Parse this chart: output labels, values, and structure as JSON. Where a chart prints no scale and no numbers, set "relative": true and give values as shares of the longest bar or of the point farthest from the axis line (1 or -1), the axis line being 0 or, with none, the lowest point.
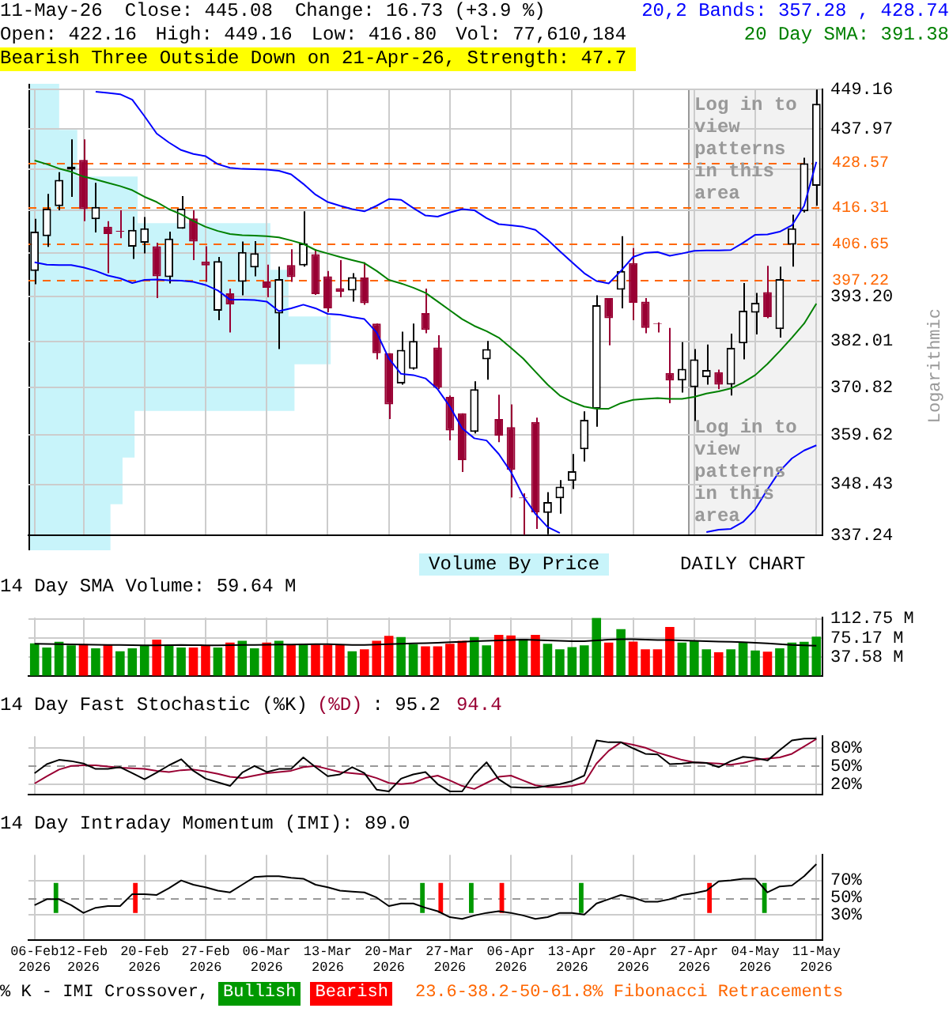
{
  "chart_data": [
    {
      "type": "candlestick",
      "annotations": [
        "11-May-26",
        "Close: 445.08",
        "Change: 16.73 (+3.9 %)",
        "20,2 Bands: 357.28 , 428.74",
        "Open: 422.16",
        "High: 449.16",
        "Low: 416.80",
        "Vol: 77,610,184",
        "20 Day SMA: 391.38",
        "Bearish Three Outside Down on 21-Apr-26, Strength: 47.7",
        "Log in to view patterns in this area",
        "Log in to view patterns in this area",
        "Volume By Price",
        "DAILY CHART"
      ],
      "categories": [
        "06-Feb 2026",
        null,
        null,
        null,
        "12-Feb 2026",
        null,
        null,
        null,
        null,
        "20-Feb 2026",
        null,
        null,
        null,
        null,
        "27-Feb 2026",
        null,
        null,
        null,
        null,
        "06-Mar 2026",
        null,
        null,
        null,
        null,
        "13-Mar 2026",
        null,
        null,
        null,
        null,
        "20-Mar 2026",
        null,
        null,
        null,
        null,
        "27-Mar 2026",
        null,
        null,
        null,
        null,
        "06-Apr 2026",
        null,
        null,
        null,
        null,
        "13-Apr 2026",
        null,
        null,
        null,
        null,
        "20-Apr 2026",
        null,
        null,
        null,
        null,
        "27-Apr 2026",
        null,
        null,
        null,
        null,
        "04-May 2026",
        null,
        null,
        null,
        null,
        "11-May 2026"
      ],
      "ohlc": [
        [
          399.7,
          413.3,
          396.3,
          409.9
        ],
        [
          408.7,
          420.0,
          405.9,
          416.0
        ],
        [
          416.7,
          425.9,
          415.6,
          423.8
        ],
        [
          426.6,
          435.0,
          419.2,
          427.4
        ],
        [
          429.3,
          435.0,
          412.7,
          415.9
        ],
        [
          413.2,
          423.0,
          409.7,
          416.5
        ],
        [
          411.2,
          412.7,
          399.1,
          409.3
        ],
        [
          410.1,
          415.6,
          408.2,
          409.9
        ],
        [
          406.0,
          413.9,
          402.8,
          410.4
        ],
        [
          407.0,
          413.8,
          404.2,
          410.8
        ],
        [
          406.1,
          407.0,
          392.8,
          398.3
        ],
        [
          398.1,
          409.9,
          396.5,
          408.1
        ],
        [
          410.7,
          419.4,
          410.7,
          416.0
        ],
        [
          413.4,
          415.6,
          402.5,
          407.3
        ],
        [
          402.1,
          406.1,
          396.9,
          401.1
        ],
        [
          389.6,
          403.3,
          387.2,
          402.2
        ],
        [
          394.0,
          395.2,
          384.2,
          391.2
        ],
        [
          396.9,
          407.3,
          393.5,
          404.6
        ],
        [
          400.6,
          407.4,
          398.3,
          404.3
        ],
        [
          397.0,
          401.3,
          393.0,
          395.4
        ],
        [
          388.9,
          400.8,
          380.1,
          397.6
        ],
        [
          401.2,
          405.3,
          396.9,
          398.1
        ],
        [
          401.1,
          415.3,
          400.8,
          406.8
        ],
        [
          404.0,
          405.3,
          393.6,
          393.8
        ],
        [
          398.3,
          399.7,
          389.2,
          390.2
        ],
        [
          395.3,
          402.5,
          393.0,
          394.4
        ],
        [
          394.7,
          399.1,
          391.9,
          398.1
        ],
        [
          398.0,
          401.9,
          391.1,
          391.5
        ],
        [
          386.4,
          386.4,
          377.6,
          379.1
        ],
        [
          379.1,
          379.1,
          363.4,
          366.8
        ],
        [
          371.8,
          384.4,
          371.5,
          379.9
        ],
        [
          375.3,
          386.4,
          375.1,
          382.1
        ],
        [
          389.0,
          395.2,
          384.0,
          384.8
        ],
        [
          380.5,
          383.5,
          370.4,
          370.8
        ],
        [
          368.6,
          368.9,
          358.4,
          360.7
        ],
        [
          364.7,
          364.7,
          351.2,
          353.9
        ],
        [
          360.4,
          372.3,
          360.0,
          370.4
        ],
        [
          377.6,
          382.1,
          372.7,
          380.1
        ],
        [
          363.4,
          369.1,
          358.0,
          359.5
        ],
        [
          361.5,
          366.8,
          345.5,
          351.7
        ],
        [
          345.5,
          346.4,
          337.3,
          345.3
        ],
        [
          362.7,
          363.7,
          338.6,
          342.2
        ],
        [
          342.1,
          346.7,
          337.4,
          344.5
        ],
        [
          345.3,
          349.4,
          341.9,
          347.9
        ],
        [
          349.2,
          355.3,
          347.4,
          351.4
        ],
        [
          356.4,
          365.2,
          353.6,
          363.2
        ],
        [
          365.8,
          393.5,
          361.6,
          391.0
        ],
        [
          392.8,
          392.8,
          381.0,
          387.7
        ],
        [
          394.9,
          408.7,
          390.2,
          399.7
        ],
        [
          401.7,
          405.6,
          387.2,
          391.6
        ],
        [
          391.9,
          392.8,
          384.0,
          385.3
        ],
        [
          386.5,
          386.7,
          384.2,
          386.3
        ],
        [
          374.3,
          385.3,
          367.1,
          372.5
        ],
        [
          372.5,
          381.8,
          369.6,
          375.3
        ],
        [
          370.9,
          380.1,
          362.9,
          377.6
        ],
        [
          373.3,
          381.2,
          371.5,
          375.0
        ],
        [
          374.5,
          375.1,
          370.4,
          371.5
        ],
        [
          371.5,
          383.9,
          368.9,
          380.4
        ],
        [
          381.5,
          396.6,
          377.6,
          389.6
        ],
        [
          389.1,
          394.1,
          383.7,
          391.6
        ],
        [
          394.3,
          401.0,
          387.7,
          388.0
        ],
        [
          385.0,
          400.8,
          382.9,
          397.6
        ],
        [
          406.5,
          414.4,
          400.8,
          410.8
        ],
        [
          415.3,
          429.9,
          415.0,
          428.35
        ],
        [
          422.16,
          449.16,
          416.8,
          445.08
        ]
      ],
      "series": [
        {
          "type": "line",
          "color": "#0000ff",
          "values": [
            null,
            null,
            null,
            null,
            null,
            448.5,
            448.2,
            447.8,
            446.2,
            441.5,
            436.6,
            434.1,
            432.0,
            430.9,
            430.3,
            428.1,
            427.1,
            426.8,
            426.7,
            426.6,
            426.3,
            425.3,
            422.7,
            419.8,
            417.8,
            416.8,
            415.9,
            415.3,
            416.8,
            418.6,
            418.4,
            416.2,
            414.2,
            413.9,
            415.0,
            415.9,
            415.6,
            413.5,
            411.9,
            411.6,
            411.2,
            410.4,
            407.8,
            404.8,
            401.9,
            399.1,
            397.1,
            396.5,
            399.7,
            403.3,
            404.4,
            404.6,
            403.6,
            404.2,
            404.9,
            405.0,
            405.0,
            405.1,
            407.0,
            409.1,
            409.2,
            409.9,
            411.6,
            416.8,
            428.74
          ]
        },
        {
          "type": "line",
          "color": "#0000ff",
          "values": [
            401.9,
            401.3,
            401.2,
            401.2,
            400.6,
            399.7,
            398.5,
            397.8,
            396.6,
            397.4,
            397.5,
            397.3,
            397.2,
            396.9,
            396.1,
            394.7,
            392.4,
            392.4,
            392.3,
            391.9,
            389.5,
            390.2,
            391.1,
            390.2,
            388.8,
            388.6,
            388.0,
            387.5,
            384.2,
            377.8,
            374.1,
            373.8,
            373.0,
            370.4,
            366.3,
            361.2,
            358.9,
            358.4,
            355.3,
            351.2,
            345.8,
            341.9,
            339.0,
            337.7,
            null,
            null,
            null,
            null,
            null,
            null,
            null,
            null,
            null,
            null,
            null,
            337.9,
            338.4,
            338.6,
            340.1,
            342.9,
            347.3,
            351.4,
            354.3,
            356.1,
            357.28
          ]
        },
        {
          "type": "line",
          "color": "#008000",
          "values": [
            429.1,
            428.1,
            426.9,
            426.0,
            424.7,
            423.9,
            423.0,
            422.1,
            421.0,
            419.2,
            417.8,
            415.9,
            414.5,
            412.7,
            411.2,
            410.1,
            409.3,
            409.0,
            408.9,
            408.7,
            408.4,
            407.6,
            406.7,
            405.1,
            404.2,
            403.3,
            402.5,
            401.7,
            399.7,
            397.4,
            396.5,
            395.4,
            394.1,
            391.9,
            389.7,
            387.5,
            385.8,
            384.5,
            382.9,
            380.4,
            377.8,
            374.6,
            371.5,
            368.9,
            367.4,
            366.3,
            365.8,
            365.8,
            367.1,
            367.9,
            368.1,
            368.3,
            368.1,
            368.1,
            368.6,
            369.4,
            369.9,
            370.6,
            372.0,
            373.8,
            376.5,
            379.6,
            382.9,
            386.4,
            391.38
          ]
        }
      ],
      "ylim": [
        337.24,
        449.16
      ],
      "yticks": [
        337.24,
        348.43,
        359.62,
        370.82,
        382.01,
        {
          "value": 393.2,
          "label": "393.20"
        },
        {
          "value": 404.39,
          "label": null
        },
        {
          "value": 415.58,
          "label": null
        },
        {
          "value": 426.77,
          "label": null
        },
        437.97,
        449.16
      ],
      "log": true,
      "grid": true,
      "marker": "none",
      "tick_labels": "y",
      "ref_lines": [
        {
          "axis": "y",
          "value": 428.57,
          "label": "428.57",
          "color": "#ff6600",
          "line_style": "dashed"
        },
        {
          "axis": "y",
          "value": 416.31,
          "label": "416.31",
          "color": "#ff6600",
          "line_style": "dashed"
        },
        {
          "axis": "y",
          "value": 406.65,
          "label": "406.65",
          "color": "#ff6600",
          "line_style": "dashed"
        },
        {
          "axis": "y",
          "value": 397.22,
          "label": "397.22",
          "color": "#ff6600",
          "line_style": "dashed"
        }
      ],
      "bands": [
        {
          "axis": "x",
          "from": "27-Apr 2026",
          "to": "11-May 2026",
          "color": "#f2f2f2"
        }
      ],
      "ylabel": "Logarithmic"
    },
    {
      "type": "bar",
      "orientation": "horizontal",
      "relative": true,
      "categories": [
        null,
        null,
        null,
        null,
        null,
        null,
        null,
        null,
        null,
        null
      ],
      "values": [
        0.1,
        0.16,
        0.36,
        0.8,
        0.86,
        1,
        0.88,
        0.35,
        0.31,
        0.27
      ],
      "color": "#c8f4fa"
    },
    {
      "type": "bar",
      "title": "14 Day SMA Volume: 59.64 M",
      "categories": [
        "06-Feb 2026",
        null,
        null,
        null,
        "12-Feb 2026",
        null,
        null,
        null,
        null,
        "20-Feb 2026",
        null,
        null,
        null,
        null,
        "27-Feb 2026",
        null,
        null,
        null,
        null,
        "06-Mar 2026",
        null,
        null,
        null,
        null,
        "13-Mar 2026",
        null,
        null,
        null,
        null,
        "20-Mar 2026",
        null,
        null,
        null,
        null,
        "27-Mar 2026",
        null,
        null,
        null,
        null,
        "06-Apr 2026",
        null,
        null,
        null,
        null,
        "13-Apr 2026",
        null,
        null,
        null,
        null,
        "20-Apr 2026",
        null,
        null,
        null,
        null,
        "27-Apr 2026",
        null,
        null,
        null,
        null,
        "04-May 2026",
        null,
        null,
        null,
        null,
        "11-May 2026"
      ],
      "series": [
        {
          "colors": [
            "#009900",
            "#009900",
            "#009900",
            "#009900",
            "#ff0000",
            "#009900",
            "#ff0000",
            "#009900",
            "#009900",
            "#009900",
            "#ff0000",
            "#009900",
            "#009900",
            "#ff0000",
            "#ff0000",
            "#009900",
            "#ff0000",
            "#009900",
            "#009900",
            "#ff0000",
            "#009900",
            "#ff0000",
            "#009900",
            "#ff0000",
            "#ff0000",
            "#ff0000",
            "#009900",
            "#ff0000",
            "#ff0000",
            "#ff0000",
            "#009900",
            "#009900",
            "#ff0000",
            "#ff0000",
            "#ff0000",
            "#ff0000",
            "#009900",
            "#009900",
            "#ff0000",
            "#ff0000",
            "#009900",
            "#ff0000",
            "#009900",
            "#009900",
            "#009900",
            "#009900",
            "#009900",
            "#ff0000",
            "#009900",
            "#ff0000",
            "#ff0000",
            "#ff0000",
            "#ff0000",
            "#009900",
            "#009900",
            "#009900",
            "#ff0000",
            "#009900",
            "#009900",
            "#009900",
            "#ff0000",
            "#009900",
            "#009900",
            "#009900",
            "#009900"
          ],
          "values": [
            64.1,
            56.0,
            67.1,
            60.4,
            62.6,
            54.5,
            61.9,
            48.6,
            54.5,
            61.2,
            71.5,
            61.2,
            56.0,
            56.0,
            59.0,
            56.0,
            65.6,
            69.3,
            54.5,
            65.6,
            69.3,
            61.2,
            63.4,
            63.4,
            61.2,
            61.2,
            48.6,
            52.3,
            69.3,
            78.9,
            76.6,
            62.6,
            58.2,
            58.2,
            63.4,
            69.3,
            76.6,
            60.4,
            81.1,
            79.6,
            73.0,
            81.1,
            63.4,
            52.3,
            56.7,
            60.4,
            114.5,
            65.6,
            92.1,
            67.8,
            52.3,
            52.3,
            96.5,
            65.6,
            70.0,
            52.3,
            46.4,
            52.3,
            65.6,
            50.1,
            47.9,
            54.5,
            65.6,
            67.1,
            77.61
          ]
        },
        {
          "type": "line",
          "color": "#000000",
          "values": [
            63.4,
            63.0,
            62.6,
            62.2,
            61.9,
            61.5,
            61.2,
            61.2,
            60.8,
            60.4,
            60.4,
            60.8,
            61.2,
            60.8,
            60.4,
            60.4,
            60.8,
            61.2,
            61.2,
            61.5,
            61.9,
            61.9,
            62.2,
            62.6,
            62.6,
            61.9,
            61.2,
            61.2,
            61.9,
            62.6,
            63.4,
            64.1,
            64.5,
            65.2,
            66.3,
            67.1,
            68.5,
            69.3,
            70.0,
            70.7,
            71.5,
            70.7,
            70.0,
            69.3,
            68.5,
            68.5,
            70.0,
            71.5,
            72.2,
            72.2,
            71.5,
            70.7,
            70.7,
            70.0,
            69.3,
            68.5,
            67.8,
            67.1,
            66.3,
            65.2,
            64.1,
            62.6,
            61.2,
            60.4,
            59.64
          ]
        }
      ],
      "ylim": [
        0,
        115
      ],
      "yticks": [
        {
          "value": 37.58,
          "label": "37.58 M"
        },
        {
          "value": 75.17,
          "label": "75.17 M"
        },
        {
          "value": 112.75,
          "label": "112.75 M"
        }
      ],
      "grid": true,
      "marker": "none",
      "tick_labels": "y"
    },
    {
      "type": "line",
      "title": "14 Day Fast Stochastic",
      "categories": [
        "06-Feb 2026",
        null,
        null,
        null,
        "12-Feb 2026",
        null,
        null,
        null,
        null,
        "20-Feb 2026",
        null,
        null,
        null,
        null,
        "27-Feb 2026",
        null,
        null,
        null,
        null,
        "06-Mar 2026",
        null,
        null,
        null,
        null,
        "13-Mar 2026",
        null,
        null,
        null,
        null,
        "20-Mar 2026",
        null,
        null,
        null,
        null,
        "27-Mar 2026",
        null,
        null,
        null,
        null,
        "06-Apr 2026",
        null,
        null,
        null,
        null,
        "13-Apr 2026",
        null,
        null,
        null,
        null,
        "20-Apr 2026",
        null,
        null,
        null,
        null,
        "27-Apr 2026",
        null,
        null,
        null,
        null,
        "04-May 2026",
        null,
        null,
        null,
        null,
        "11-May 2026"
      ],
      "series": [
        {
          "name": "(%K)",
          "color": "#000000",
          "values": [
            38,
            53,
            60,
            58,
            54,
            45,
            45,
            48,
            38,
            28,
            39,
            51,
            61,
            42,
            29,
            23,
            17,
            39,
            50,
            40,
            45,
            45,
            64,
            48,
            33,
            36,
            48,
            38,
            11,
            8,
            29,
            36,
            40,
            20,
            8,
            8,
            36,
            56,
            28,
            15,
            14,
            14,
            17,
            20,
            25,
            34,
            92,
            89,
            89,
            79,
            70,
            69,
            53,
            54,
            56,
            55,
            48,
            58,
            65,
            63,
            59,
            76,
            92,
            95,
            95.2
          ]
        },
        {
          "name": "(%D)",
          "color": "#990033",
          "values": [
            21,
            33,
            44,
            50,
            51,
            51,
            49,
            47,
            46,
            45,
            42,
            40,
            43,
            44,
            41,
            37,
            32,
            30,
            34,
            38,
            40,
            42,
            48,
            50,
            45,
            40,
            38,
            36,
            30,
            22,
            20,
            22,
            30,
            34,
            26,
            17,
            12,
            22,
            32,
            34,
            26,
            18,
            15,
            15,
            17,
            22,
            54,
            75,
            89,
            85,
            80,
            72,
            66,
            60,
            56,
            55,
            54,
            52,
            55,
            60,
            62,
            64,
            70,
            82,
            94.4
          ]
        }
      ],
      "ylim": [
        3,
        99
      ],
      "yticks": [
        {
          "value": 20,
          "label": "20%"
        },
        {
          "value": 50,
          "label": "50%"
        },
        {
          "value": 80,
          "label": "80%"
        }
      ],
      "ref_lines": [
        {
          "axis": "y",
          "value": 50,
          "color": "#999999",
          "line_style": "dashed"
        }
      ],
      "annotations": [
        ":",
        "95.2",
        "94.4"
      ],
      "grid": true,
      "marker": "none",
      "legend": "top left",
      "tick_labels": "y"
    },
    {
      "type": "line",
      "title": "14 Day Intraday Momentum (IMI): 89.0",
      "categories": [
        "06-Feb 2026",
        null,
        null,
        null,
        "12-Feb 2026",
        null,
        null,
        null,
        null,
        "20-Feb 2026",
        null,
        null,
        null,
        null,
        "27-Feb 2026",
        null,
        null,
        null,
        null,
        "06-Mar 2026",
        null,
        null,
        null,
        null,
        "13-Mar 2026",
        null,
        null,
        null,
        null,
        "20-Mar 2026",
        null,
        null,
        null,
        null,
        "27-Mar 2026",
        null,
        null,
        null,
        null,
        "06-Apr 2026",
        null,
        null,
        null,
        null,
        "13-Apr 2026",
        null,
        null,
        null,
        null,
        "20-Apr 2026",
        null,
        null,
        null,
        null,
        "27-Apr 2026",
        null,
        null,
        null,
        null,
        "04-May 2026",
        null,
        null,
        null,
        null,
        "11-May 2026"
      ],
      "series": [
        {
          "color": "#000000",
          "values": [
            41,
            48,
            48,
            41,
            32,
            38,
            40,
            40,
            54,
            54,
            53,
            61,
            70,
            65,
            62,
            58,
            56,
            65,
            74,
            75,
            75,
            73,
            72,
            65,
            62,
            58,
            57,
            56,
            50,
            40,
            43,
            43,
            38,
            34,
            27,
            25,
            29,
            32,
            34,
            32,
            29,
            25,
            27,
            32,
            32,
            30,
            43,
            48,
            53,
            50,
            45,
            45,
            48,
            53,
            55,
            58,
            69,
            70,
            72,
            72,
            56,
            63,
            64,
            75,
            89
          ]
        },
        {
          "name": "Bullish",
          "type": "bar",
          "color": "#009900",
          "base": [
            null,
            null,
            32,
            null,
            null,
            null,
            null,
            null,
            null,
            null,
            null,
            null,
            null,
            null,
            null,
            null,
            null,
            null,
            null,
            null,
            null,
            null,
            null,
            null,
            null,
            null,
            null,
            null,
            null,
            null,
            null,
            null,
            32,
            null,
            null,
            null,
            32,
            null,
            null,
            null,
            null,
            null,
            null,
            null,
            null,
            32,
            null,
            null,
            null,
            null,
            null,
            null,
            null,
            null,
            null,
            null,
            null,
            null,
            null,
            null,
            32,
            null,
            null,
            null,
            null
          ],
          "values": [
            null,
            null,
            35,
            null,
            null,
            null,
            null,
            null,
            null,
            null,
            null,
            null,
            null,
            null,
            null,
            null,
            null,
            null,
            null,
            null,
            null,
            null,
            null,
            null,
            null,
            null,
            null,
            null,
            null,
            null,
            null,
            null,
            35,
            null,
            null,
            null,
            35,
            null,
            null,
            null,
            null,
            null,
            null,
            null,
            null,
            35,
            null,
            null,
            null,
            null,
            null,
            null,
            null,
            null,
            null,
            null,
            null,
            null,
            null,
            null,
            35,
            null,
            null,
            null,
            null
          ]
        },
        {
          "name": "Bearish",
          "type": "bar",
          "color": "#ff0000",
          "base": [
            null,
            null,
            null,
            null,
            null,
            null,
            null,
            null,
            32,
            null,
            null,
            null,
            null,
            null,
            null,
            null,
            null,
            null,
            null,
            null,
            null,
            null,
            null,
            null,
            null,
            null,
            null,
            null,
            null,
            null,
            null,
            null,
            null,
            32,
            null,
            null,
            null,
            null,
            32,
            null,
            null,
            null,
            null,
            null,
            null,
            null,
            null,
            null,
            null,
            null,
            null,
            null,
            null,
            null,
            null,
            32,
            null,
            null,
            null,
            null,
            null,
            null,
            null,
            null,
            null
          ],
          "values": [
            null,
            null,
            null,
            null,
            null,
            null,
            null,
            null,
            35,
            null,
            null,
            null,
            null,
            null,
            null,
            null,
            null,
            null,
            null,
            null,
            null,
            null,
            null,
            null,
            null,
            null,
            null,
            null,
            null,
            null,
            null,
            null,
            null,
            35,
            null,
            null,
            null,
            null,
            35,
            null,
            null,
            null,
            null,
            null,
            null,
            null,
            null,
            null,
            null,
            null,
            null,
            null,
            null,
            null,
            null,
            35,
            null,
            null,
            null,
            null,
            null,
            null,
            null,
            null,
            null
          ]
        }
      ],
      "ylim": [
        0,
        100
      ],
      "yticks": [
        {
          "value": 30,
          "label": "30%"
        },
        {
          "value": 50,
          "label": "50%"
        },
        {
          "value": 70,
          "label": "70%"
        }
      ],
      "ref_lines": [
        {
          "axis": "y",
          "value": 50,
          "color": "#999999",
          "line_style": "dashed"
        }
      ],
      "annotations": [
        "% K - IMI Crossover,",
        "23.6-38.2-50-61.8% Fibonacci Retracements"
      ],
      "grid": true,
      "marker": "none",
      "legend": "bottom"
    }
  ]
}
